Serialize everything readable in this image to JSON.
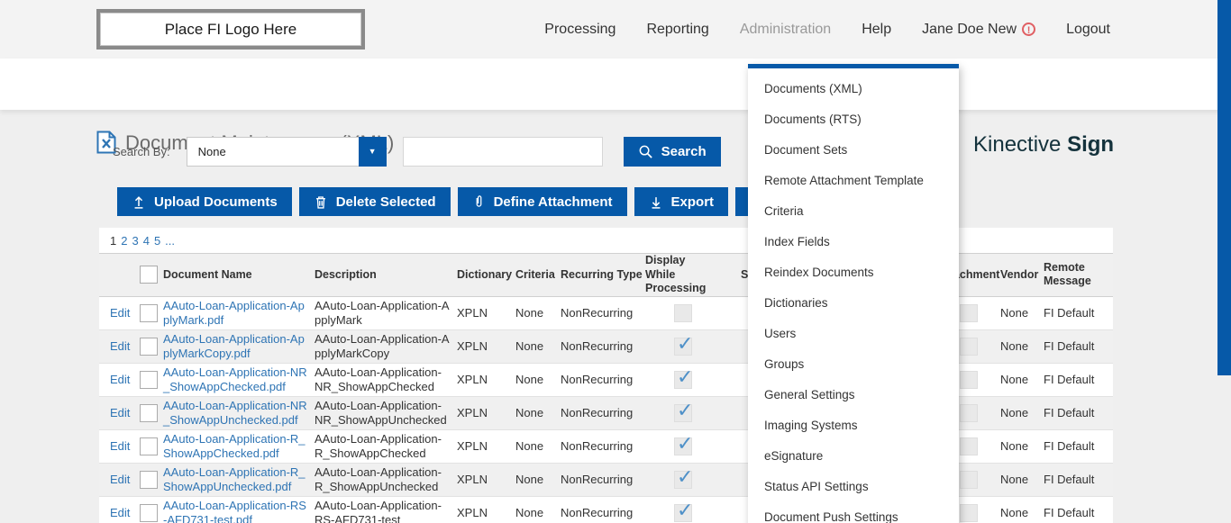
{
  "header": {
    "logo_text": "Place FI Logo Here",
    "nav_items": [
      {
        "label": "Processing",
        "active": false,
        "warning": false
      },
      {
        "label": "Reporting",
        "active": false,
        "warning": false
      },
      {
        "label": "Administration",
        "active": true,
        "warning": false
      },
      {
        "label": "Help",
        "active": false,
        "warning": false
      },
      {
        "label": "Jane Doe New",
        "active": false,
        "warning": true
      },
      {
        "label": "Logout",
        "active": false,
        "warning": false
      }
    ]
  },
  "title_bar": {
    "page_title": "Document Maintenance (XML)",
    "brand_name": "Kinective",
    "brand_suffix": "Sign"
  },
  "admin_menu": {
    "items": [
      {
        "label": "Documents (XML)"
      },
      {
        "label": "Documents (RTS)"
      },
      {
        "label": "Document Sets"
      },
      {
        "label": "Remote Attachment Template"
      },
      {
        "label": "Criteria"
      },
      {
        "label": "Index Fields"
      },
      {
        "label": "Reindex Documents"
      },
      {
        "label": "Dictionaries"
      },
      {
        "label": "Users"
      },
      {
        "label": "Groups"
      },
      {
        "label": "General Settings"
      },
      {
        "label": "Imaging Systems"
      },
      {
        "label": "eSignature"
      },
      {
        "label": "Status API Settings"
      },
      {
        "label": "Document Push Settings"
      }
    ]
  },
  "search": {
    "label": "Search By:",
    "selected_option": "None",
    "input_value": "",
    "button_label": "Search"
  },
  "toolbar": {
    "buttons": [
      {
        "label": "Upload Documents",
        "icon": "upload-icon"
      },
      {
        "label": "Delete Selected",
        "icon": "trash-icon"
      },
      {
        "label": "Define Attachment",
        "icon": "paperclip-icon"
      },
      {
        "label": "Export",
        "icon": "export-icon"
      },
      {
        "label": "",
        "icon": "doc-download-icon"
      }
    ]
  },
  "pagination": {
    "pages": [
      {
        "label": "1",
        "current": true
      },
      {
        "label": "2",
        "current": false
      },
      {
        "label": "3",
        "current": false
      },
      {
        "label": "4",
        "current": false
      },
      {
        "label": "5",
        "current": false
      },
      {
        "label": "...",
        "current": false
      }
    ]
  },
  "table": {
    "edit_label": "Edit",
    "headers": {
      "document_name": "Document Name",
      "description": "Description",
      "dictionary": "Dictionary",
      "criteria": "Criteria",
      "recurring_type": "Recurring Type",
      "display_while_processing": "Display While Processing",
      "covered_fragment": "S",
      "attachment": "Attachment",
      "vendor": "Vendor",
      "remote_message": "Remote Message"
    },
    "rows": [
      {
        "name": "AAuto-Loan-Application-ApplyMark.pdf",
        "description": "AAuto-Loan-Application-ApplyMark",
        "dictionary": "XPLN",
        "criteria": "None",
        "recurring_type": "NonRecurring",
        "display_while_processing": false,
        "vendor": "None",
        "remote_message": "FI Default"
      },
      {
        "name": "AAuto-Loan-Application-ApplyMarkCopy.pdf",
        "description": "AAuto-Loan-Application-ApplyMarkCopy",
        "dictionary": "XPLN",
        "criteria": "None",
        "recurring_type": "NonRecurring",
        "display_while_processing": true,
        "vendor": "None",
        "remote_message": "FI Default"
      },
      {
        "name": "AAuto-Loan-Application-NR_ShowAppChecked.pdf",
        "description": "AAuto-Loan-Application-NR_ShowAppChecked",
        "dictionary": "XPLN",
        "criteria": "None",
        "recurring_type": "NonRecurring",
        "display_while_processing": true,
        "vendor": "None",
        "remote_message": "FI Default"
      },
      {
        "name": "AAuto-Loan-Application-NR_ShowAppUnchecked.pdf",
        "description": "AAuto-Loan-Application-NR_ShowAppUnchecked",
        "dictionary": "XPLN",
        "criteria": "None",
        "recurring_type": "NonRecurring",
        "display_while_processing": true,
        "vendor": "None",
        "remote_message": "FI Default"
      },
      {
        "name": "AAuto-Loan-Application-R_ShowAppChecked.pdf",
        "description": "AAuto-Loan-Application-R_ShowAppChecked",
        "dictionary": "XPLN",
        "criteria": "None",
        "recurring_type": "NonRecurring",
        "display_while_processing": true,
        "vendor": "None",
        "remote_message": "FI Default"
      },
      {
        "name": "AAuto-Loan-Application-R_ShowAppUnchecked.pdf",
        "description": "AAuto-Loan-Application-R_ShowAppUnchecked",
        "dictionary": "XPLN",
        "criteria": "None",
        "recurring_type": "NonRecurring",
        "display_while_processing": true,
        "vendor": "None",
        "remote_message": "FI Default"
      },
      {
        "name": "AAuto-Loan-Application-RS-AFD731-test.pdf",
        "description": "AAuto-Loan-Application-RS-AFD731-test",
        "dictionary": "XPLN",
        "criteria": "None",
        "recurring_type": "NonRecurring",
        "display_while_processing": true,
        "vendor": "None",
        "remote_message": "FI Default"
      }
    ]
  },
  "colors": {
    "accent_blue": "#0659a8",
    "link_blue": "#2e74b4",
    "brand_dark": "#14323c",
    "warning_red": "#e05f63",
    "check_blue": "#4e90c8"
  }
}
